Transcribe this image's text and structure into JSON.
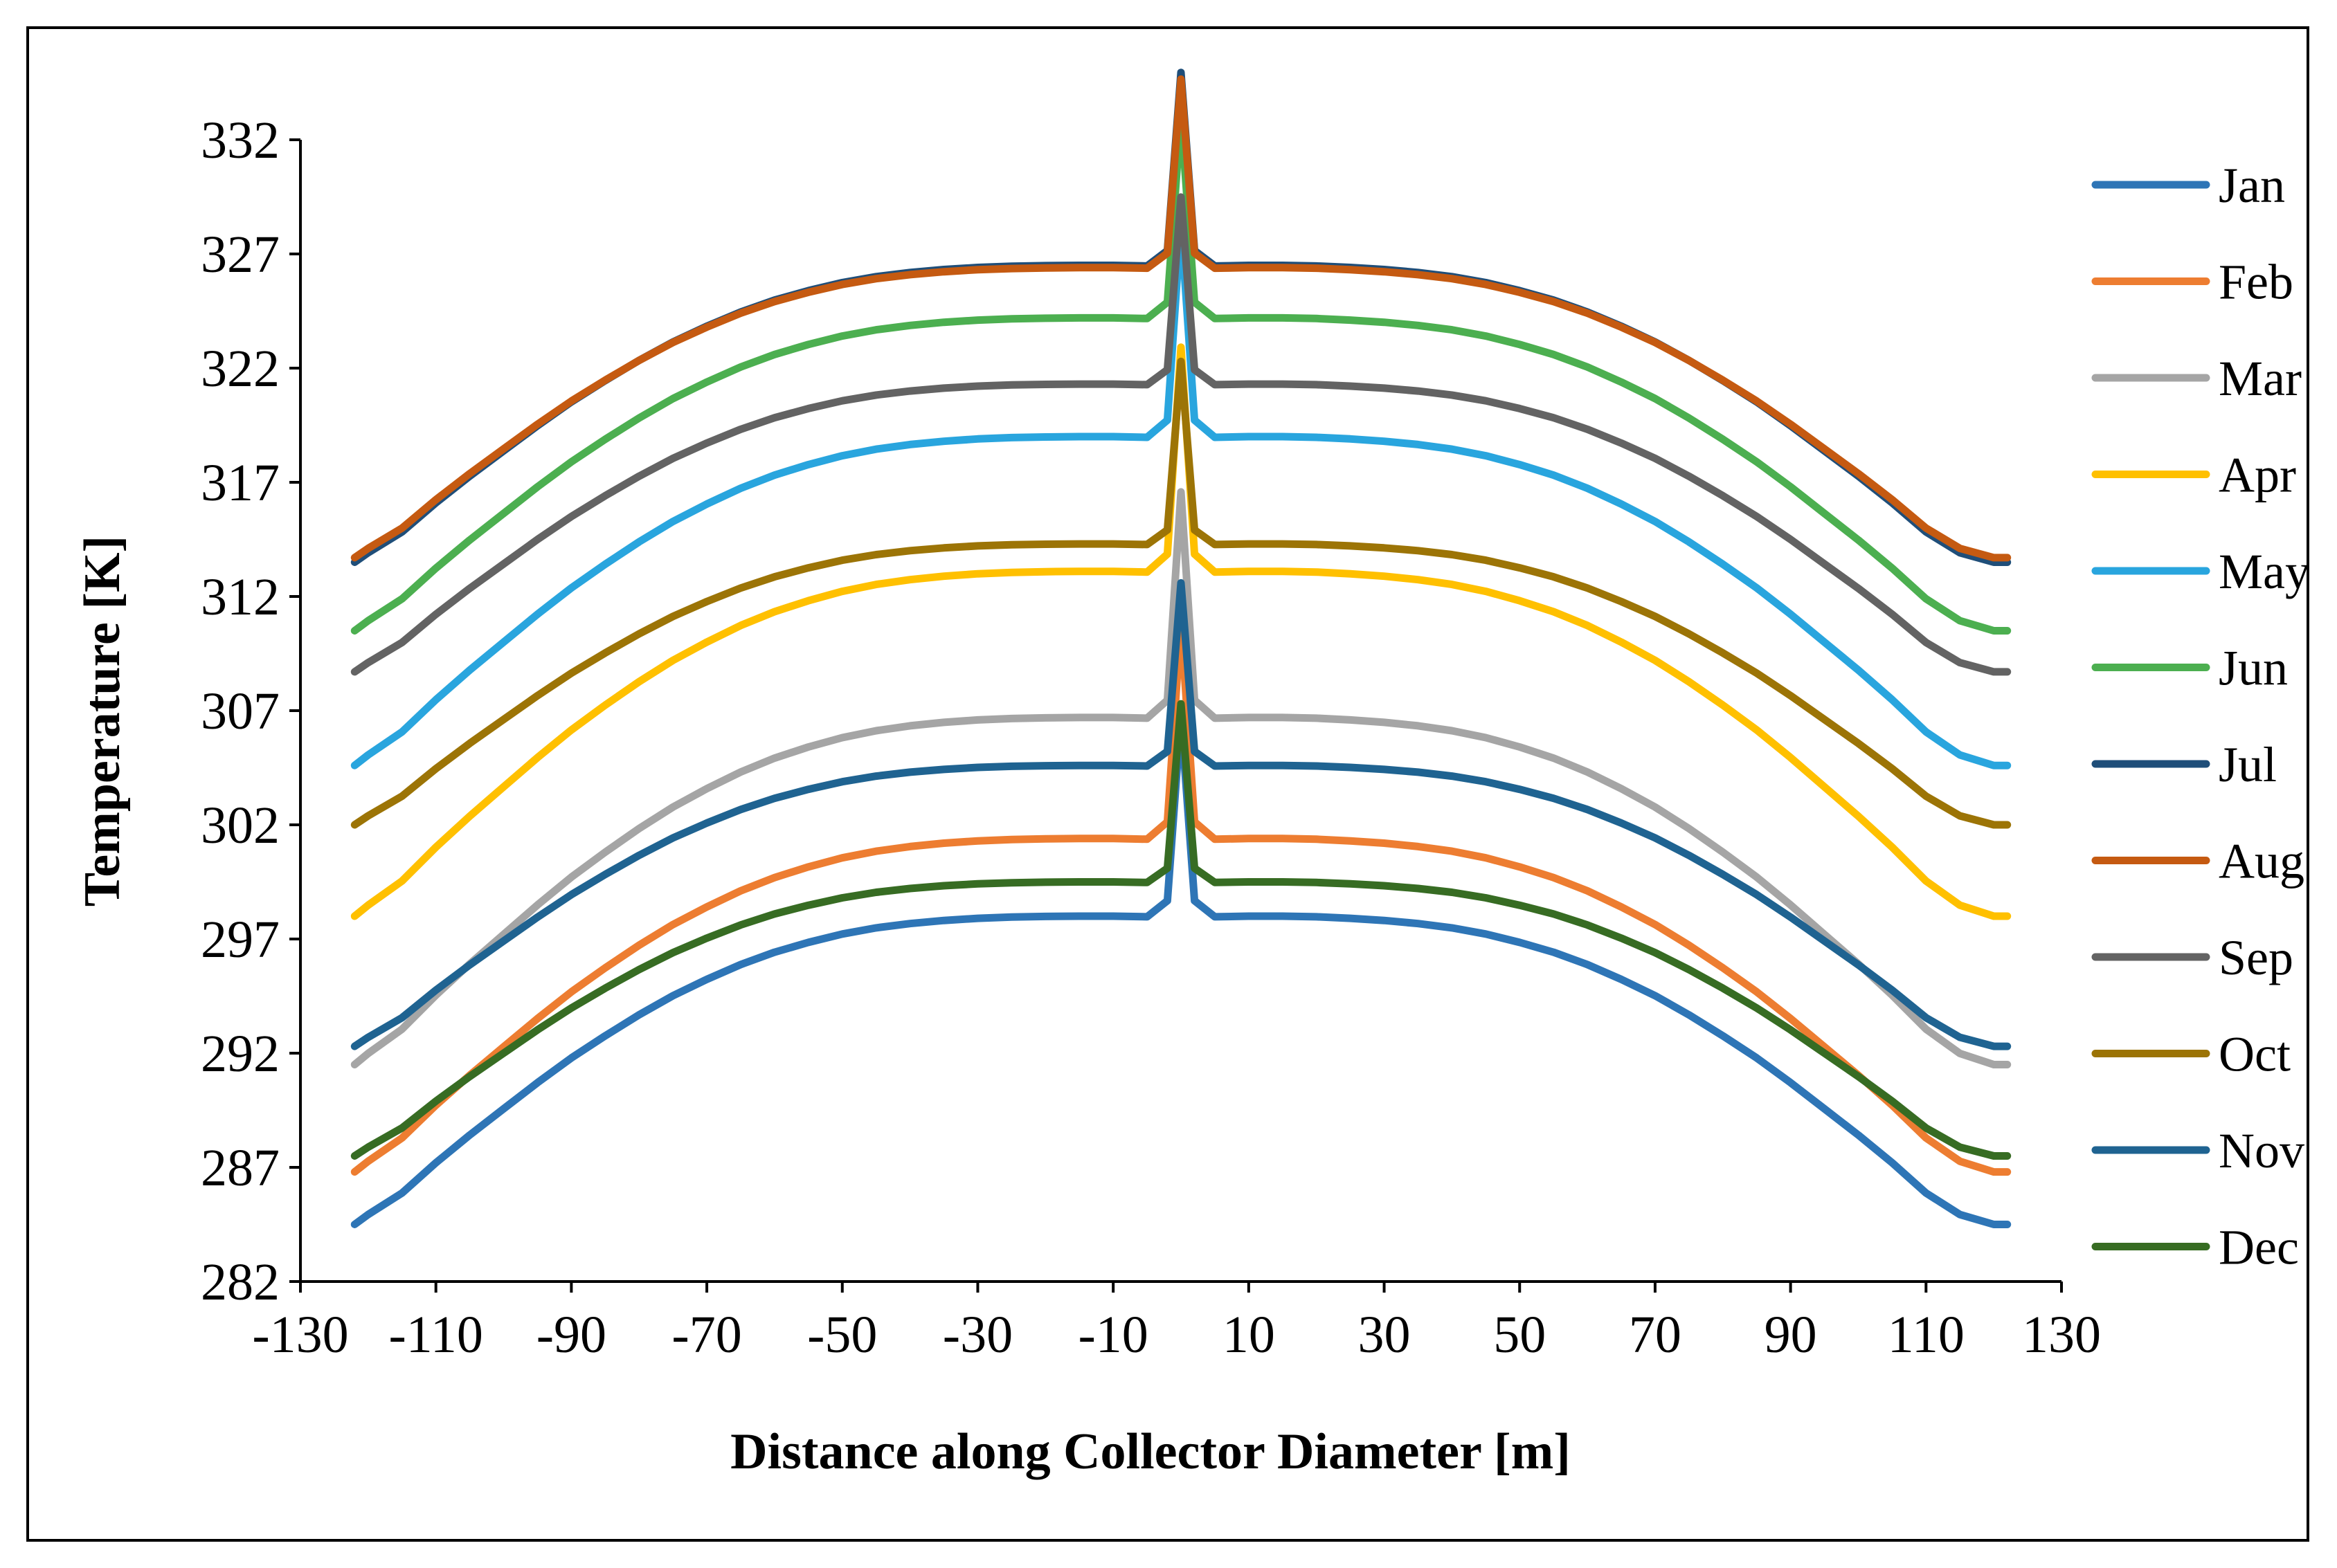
{
  "chart_data": {
    "type": "line",
    "xlabel": "Distance along Collector Diameter  [m]",
    "ylabel": "Temperature  [K]",
    "xlim": [
      -130,
      130
    ],
    "ylim": [
      282,
      332
    ],
    "xticks": [
      -130,
      -110,
      -90,
      -70,
      -50,
      -30,
      -10,
      10,
      30,
      50,
      70,
      90,
      110,
      130
    ],
    "yticks": [
      282,
      287,
      292,
      297,
      302,
      307,
      312,
      317,
      322,
      327,
      332
    ],
    "legend_position": "right",
    "grid": false,
    "profile": {
      "x": [
        -122,
        -120,
        -115,
        -110,
        -105,
        -100,
        -95,
        -90,
        -85,
        -80,
        -75,
        -70,
        -65,
        -60,
        -55,
        -50,
        -45,
        -40,
        -35,
        -30,
        -25,
        -20,
        -15,
        -10,
        -5,
        -2,
        -0.5,
        0,
        0.5,
        2,
        5,
        10,
        15,
        20,
        25,
        30,
        35,
        40,
        45,
        50,
        55,
        60,
        65,
        70,
        75,
        80,
        85,
        90,
        95,
        100,
        105,
        110,
        115,
        120,
        122
      ],
      "shape": [
        0.0,
        0.032,
        0.102,
        0.2,
        0.29,
        0.375,
        0.46,
        0.54,
        0.612,
        0.68,
        0.742,
        0.795,
        0.843,
        0.883,
        0.915,
        0.942,
        0.962,
        0.976,
        0.986,
        0.993,
        0.997,
        0.999,
        1.0,
        1.0,
        0.998,
        1.05,
        1.5,
        1.65,
        1.5,
        1.05,
        0.998,
        1.0,
        1.0,
        0.998,
        0.993,
        0.986,
        0.976,
        0.962,
        0.942,
        0.915,
        0.883,
        0.843,
        0.795,
        0.742,
        0.68,
        0.612,
        0.54,
        0.46,
        0.375,
        0.29,
        0.2,
        0.102,
        0.032,
        0.0,
        0.0
      ]
    },
    "series": [
      {
        "name": "Jan",
        "color": "#2E75B6",
        "edge": 284.5,
        "center": 298.0
      },
      {
        "name": "Feb",
        "color": "#ED7D31",
        "edge": 286.8,
        "center": 301.4
      },
      {
        "name": "Mar",
        "color": "#A5A5A5",
        "edge": 291.5,
        "center": 306.7
      },
      {
        "name": "Apr",
        "color": "#FFC000",
        "edge": 298.0,
        "center": 313.1
      },
      {
        "name": "May",
        "color": "#29A5DE",
        "edge": 304.6,
        "center": 319.0
      },
      {
        "name": "Jun",
        "color": "#4CAF50",
        "edge": 310.5,
        "center": 324.2
      },
      {
        "name": "Jul",
        "color": "#1F4E79",
        "edge": 313.5,
        "center": 326.5
      },
      {
        "name": "Aug",
        "color": "#C55A11",
        "edge": 313.7,
        "center": 326.4
      },
      {
        "name": "Sep",
        "color": "#636363",
        "edge": 308.7,
        "center": 321.3
      },
      {
        "name": "Oct",
        "color": "#9C7406",
        "edge": 302.0,
        "center": 314.3
      },
      {
        "name": "Nov",
        "color": "#1F6391",
        "edge": 292.3,
        "center": 304.6
      },
      {
        "name": "Dec",
        "color": "#376C23",
        "edge": 287.5,
        "center": 299.5
      }
    ]
  }
}
